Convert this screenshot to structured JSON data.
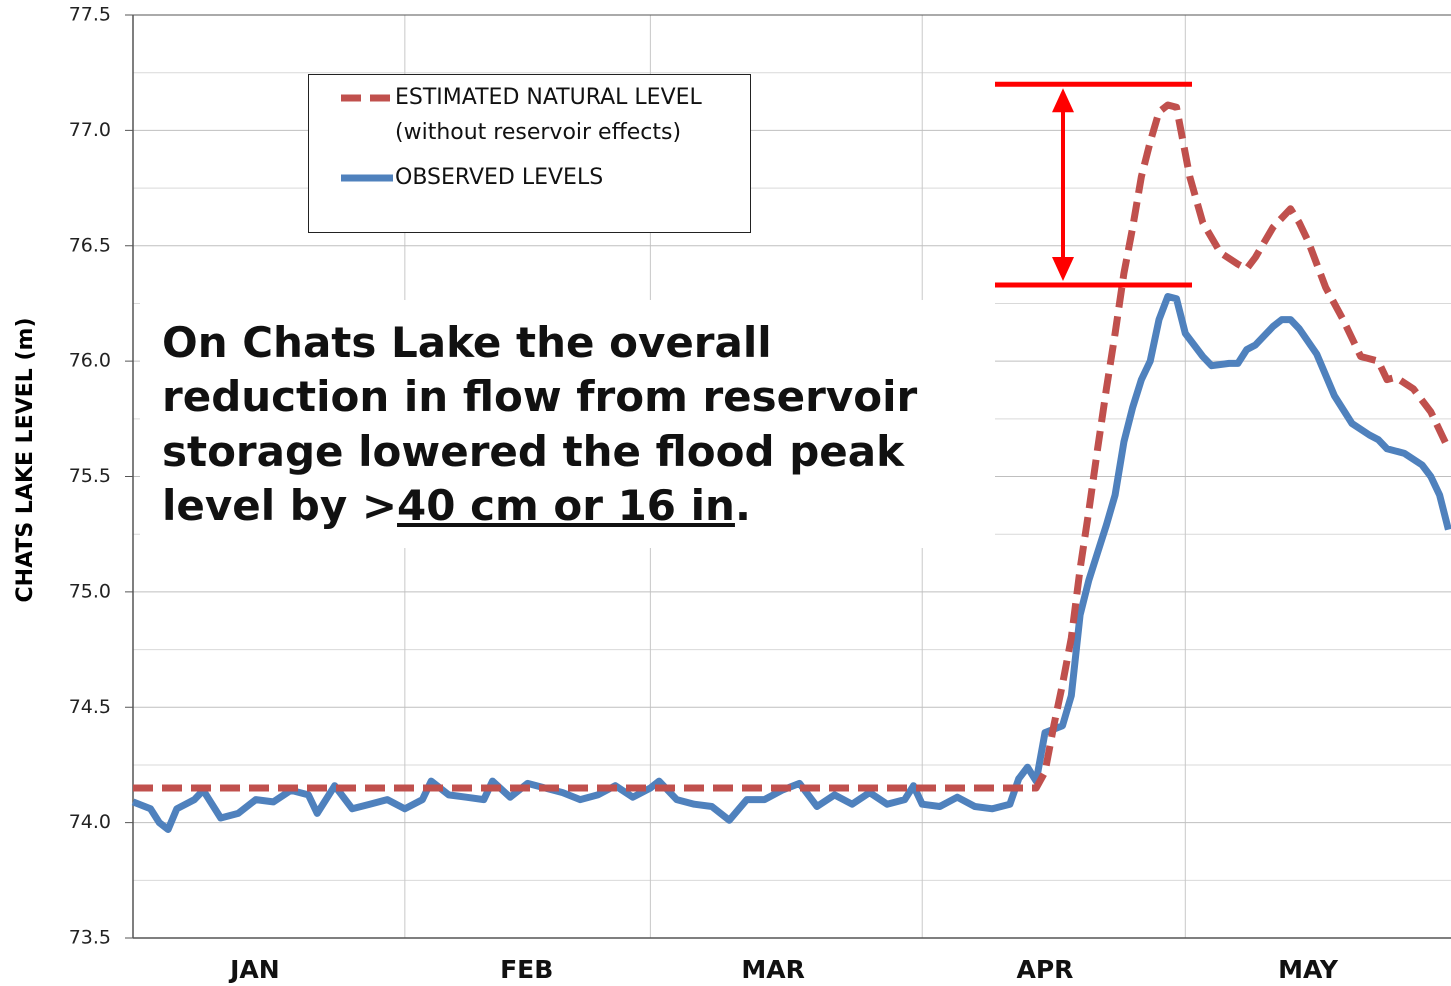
{
  "chart_data": {
    "type": "line",
    "ylabel": "CHATS LAKE LEVEL (m)",
    "ylim": [
      73.5,
      77.5
    ],
    "yticks": [
      73.5,
      {
        "value": 74,
        "label": "74.0"
      },
      74.5,
      {
        "value": 75,
        "label": "75.0"
      },
      75.5,
      {
        "value": 76,
        "label": "76.0"
      },
      76.5,
      {
        "value": 77,
        "label": "77.0"
      },
      77.5
    ],
    "yminor": [
      73.75,
      74.25,
      74.75,
      75.25,
      75.75,
      76.25,
      76.75,
      77.25
    ],
    "xlim": [
      0,
      150.3
    ],
    "xticks": [
      {
        "value": 13.9,
        "label": "JAN"
      },
      {
        "value": 44.9,
        "label": "FEB"
      },
      {
        "value": 73,
        "label": "MAR"
      },
      {
        "value": 104,
        "label": "APR"
      },
      {
        "value": 134,
        "label": "MAY"
      }
    ],
    "xgrid": [
      31,
      59,
      90,
      120
    ],
    "grid": true,
    "series": [
      {
        "name": "ESTIMATED NATURAL LEVEL\n(without reservoir effects)",
        "color": "#c0504d",
        "dashed": true,
        "x": [
          0,
          103,
          104,
          105,
          106,
          107,
          108,
          109,
          110,
          111,
          112,
          113,
          114,
          115,
          116,
          117,
          118,
          119,
          120.5,
          122,
          124,
          126,
          127,
          128,
          130,
          132,
          133,
          134,
          136,
          138,
          140,
          142,
          143,
          144,
          146,
          148,
          150
        ],
        "values": [
          74.15,
          74.15,
          74.22,
          74.42,
          74.6,
          74.8,
          75.1,
          75.35,
          75.62,
          75.88,
          76.12,
          76.38,
          76.58,
          76.8,
          76.95,
          77.08,
          77.11,
          77.1,
          76.8,
          76.6,
          76.47,
          76.42,
          76.4,
          76.45,
          76.58,
          76.66,
          76.6,
          76.52,
          76.32,
          76.18,
          76.02,
          76.0,
          75.92,
          75.93,
          75.88,
          75.78,
          75.62
        ]
      },
      {
        "name": "OBSERVED LEVELS",
        "color": "#4f81bd",
        "dashed": false,
        "x": [
          0,
          2,
          3,
          4,
          5,
          7,
          8,
          10,
          12,
          14,
          16,
          18,
          20,
          21,
          23,
          25,
          27,
          29,
          31,
          33,
          34,
          36,
          38,
          40,
          41,
          43,
          45,
          47,
          49,
          51,
          53,
          55,
          57,
          59,
          60,
          62,
          64,
          66,
          68,
          70,
          72,
          74,
          76,
          78,
          80,
          82,
          84,
          86,
          88,
          89,
          90,
          92,
          94,
          96,
          98,
          100,
          101,
          102,
          103,
          104,
          106,
          107,
          108,
          109,
          110,
          111,
          112,
          113,
          114,
          115,
          116,
          117,
          118,
          119,
          120,
          122,
          123,
          125,
          126,
          127,
          128,
          130,
          131,
          132,
          133,
          135,
          137,
          139,
          141,
          142,
          143,
          145,
          147,
          148,
          149,
          150
        ],
        "values": [
          74.09,
          74.06,
          74.0,
          73.97,
          74.06,
          74.1,
          74.14,
          74.02,
          74.04,
          74.1,
          74.09,
          74.14,
          74.12,
          74.04,
          74.16,
          74.06,
          74.08,
          74.1,
          74.06,
          74.1,
          74.18,
          74.12,
          74.11,
          74.1,
          74.18,
          74.11,
          74.17,
          74.15,
          74.13,
          74.1,
          74.12,
          74.16,
          74.11,
          74.15,
          74.18,
          74.1,
          74.08,
          74.07,
          74.01,
          74.1,
          74.1,
          74.14,
          74.17,
          74.07,
          74.12,
          74.08,
          74.13,
          74.08,
          74.1,
          74.16,
          74.08,
          74.07,
          74.11,
          74.07,
          74.06,
          74.08,
          74.19,
          74.24,
          74.18,
          74.39,
          74.42,
          74.55,
          74.9,
          75.05,
          75.17,
          75.29,
          75.42,
          75.65,
          75.8,
          75.92,
          76.0,
          76.18,
          76.28,
          76.27,
          76.12,
          76.02,
          75.98,
          75.99,
          75.99,
          76.05,
          76.07,
          76.15,
          76.18,
          76.18,
          76.14,
          76.03,
          75.85,
          75.73,
          75.68,
          75.66,
          75.62,
          75.6,
          75.55,
          75.5,
          75.42,
          75.27
        ]
      }
    ],
    "bracket_levels": [
      77.2,
      76.33
    ],
    "annotation": {
      "lines": [
        "On Chats Lake the overall",
        "reduction in flow from reservoir",
        "storage lowered the flood peak"
      ],
      "last": "level by >",
      "underlined": "40 cm or 16 in",
      "end": "."
    }
  }
}
